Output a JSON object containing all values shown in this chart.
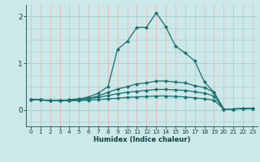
{
  "xlabel": "Humidex (Indice chaleur)",
  "bg_color": "#cce8e8",
  "grid_h_color": "#aad0d0",
  "grid_v_color": "#e8b8b8",
  "line_color": "#1a7070",
  "xlim": [
    -0.5,
    23.5
  ],
  "ylim": [
    -0.35,
    2.25
  ],
  "yticks": [
    0,
    1,
    2
  ],
  "xticks": [
    0,
    1,
    2,
    3,
    4,
    5,
    6,
    7,
    8,
    9,
    10,
    11,
    12,
    13,
    14,
    15,
    16,
    17,
    18,
    19,
    20,
    21,
    22,
    23
  ],
  "lines": [
    {
      "x": [
        0,
        1,
        2,
        3,
        4,
        5,
        6,
        7,
        8,
        9,
        10,
        11,
        12,
        13,
        14,
        15,
        16,
        17,
        18,
        19,
        20,
        21,
        22,
        23
      ],
      "y": [
        0.22,
        0.22,
        0.2,
        0.2,
        0.22,
        0.24,
        0.28,
        0.36,
        0.5,
        1.3,
        1.47,
        1.77,
        1.77,
        2.08,
        1.78,
        1.37,
        1.22,
        1.05,
        0.6,
        0.38,
        0.02,
        0.02,
        0.03,
        0.03
      ]
    },
    {
      "x": [
        0,
        1,
        2,
        3,
        4,
        5,
        6,
        7,
        8,
        9,
        10,
        11,
        12,
        13,
        14,
        15,
        16,
        17,
        18,
        19,
        20,
        21,
        22,
        23
      ],
      "y": [
        0.22,
        0.22,
        0.2,
        0.2,
        0.21,
        0.22,
        0.25,
        0.3,
        0.38,
        0.45,
        0.5,
        0.56,
        0.58,
        0.62,
        0.62,
        0.6,
        0.58,
        0.52,
        0.48,
        0.38,
        0.02,
        0.02,
        0.03,
        0.03
      ]
    },
    {
      "x": [
        0,
        1,
        2,
        3,
        4,
        5,
        6,
        7,
        8,
        9,
        10,
        11,
        12,
        13,
        14,
        15,
        16,
        17,
        18,
        19,
        20,
        21,
        22,
        23
      ],
      "y": [
        0.22,
        0.22,
        0.2,
        0.2,
        0.21,
        0.22,
        0.24,
        0.27,
        0.31,
        0.35,
        0.38,
        0.4,
        0.42,
        0.44,
        0.44,
        0.43,
        0.42,
        0.39,
        0.36,
        0.3,
        0.02,
        0.02,
        0.03,
        0.03
      ]
    },
    {
      "x": [
        0,
        1,
        2,
        3,
        4,
        5,
        6,
        7,
        8,
        9,
        10,
        11,
        12,
        13,
        14,
        15,
        16,
        17,
        18,
        19,
        20,
        21,
        22,
        23
      ],
      "y": [
        0.22,
        0.22,
        0.2,
        0.2,
        0.2,
        0.2,
        0.21,
        0.22,
        0.24,
        0.25,
        0.27,
        0.28,
        0.29,
        0.3,
        0.3,
        0.29,
        0.28,
        0.26,
        0.24,
        0.21,
        0.02,
        0.02,
        0.03,
        0.03
      ]
    }
  ]
}
